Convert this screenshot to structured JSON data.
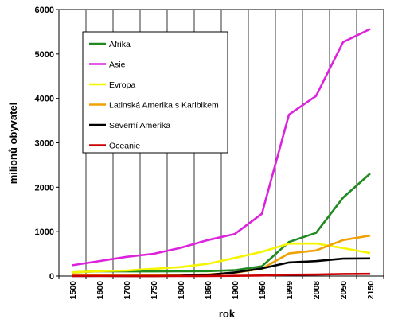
{
  "chart_data": {
    "type": "line",
    "xlabel": "rok",
    "ylabel": "milionů obyvatel",
    "ylim": [
      0,
      6000
    ],
    "yticks": [
      0,
      1000,
      2000,
      3000,
      4000,
      5000,
      6000
    ],
    "categories": [
      "1500",
      "1600",
      "1700",
      "1750",
      "1800",
      "1850",
      "1900",
      "1950",
      "1999",
      "2008",
      "2050",
      "2150"
    ],
    "grid": "vertical",
    "legend_position": "top-left",
    "series": [
      {
        "name": "Afrika",
        "color": "#1f8a1f",
        "values": [
          85,
          110,
          106,
          106,
          107,
          111,
          133,
          221,
          767,
          973,
          1766,
          2308
        ]
      },
      {
        "name": "Asie",
        "color": "#dd22dd",
        "values": [
          243,
          338,
          433,
          502,
          635,
          809,
          947,
          1402,
          3634,
          4054,
          5268,
          5561
        ]
      },
      {
        "name": "Evropa",
        "color": "#f5f500",
        "values": [
          84,
          111,
          125,
          163,
          203,
          276,
          408,
          547,
          729,
          732,
          628,
          517
        ]
      },
      {
        "name": "Latinská Amerika s Karibikem",
        "color": "#f0a000",
        "values": [
          38,
          12,
          10,
          16,
          24,
          38,
          74,
          167,
          511,
          577,
          809,
          912
        ]
      },
      {
        "name": "Severní Amerika",
        "color": "#000000",
        "values": [
          2,
          3,
          2,
          2,
          7,
          26,
          82,
          172,
          307,
          337,
          392,
          398
        ]
      },
      {
        "name": "Oceanie",
        "color": "#cc0000",
        "values": [
          3,
          3,
          2,
          2,
          2,
          2,
          6,
          13,
          30,
          34,
          46,
          51
        ]
      }
    ]
  }
}
